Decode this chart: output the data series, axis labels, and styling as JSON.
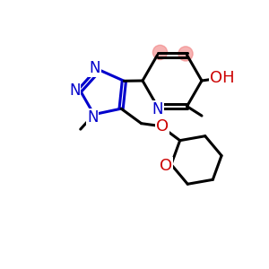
{
  "bg_color": "#ffffff",
  "bond_color": "#000000",
  "n_color": "#0000cc",
  "o_color": "#cc0000",
  "highlight_color": "#f08080",
  "highlight_alpha": 0.6,
  "line_width": 2.2,
  "font_size_atom": 12,
  "xlim": [
    0,
    10
  ],
  "ylim": [
    0,
    10
  ]
}
